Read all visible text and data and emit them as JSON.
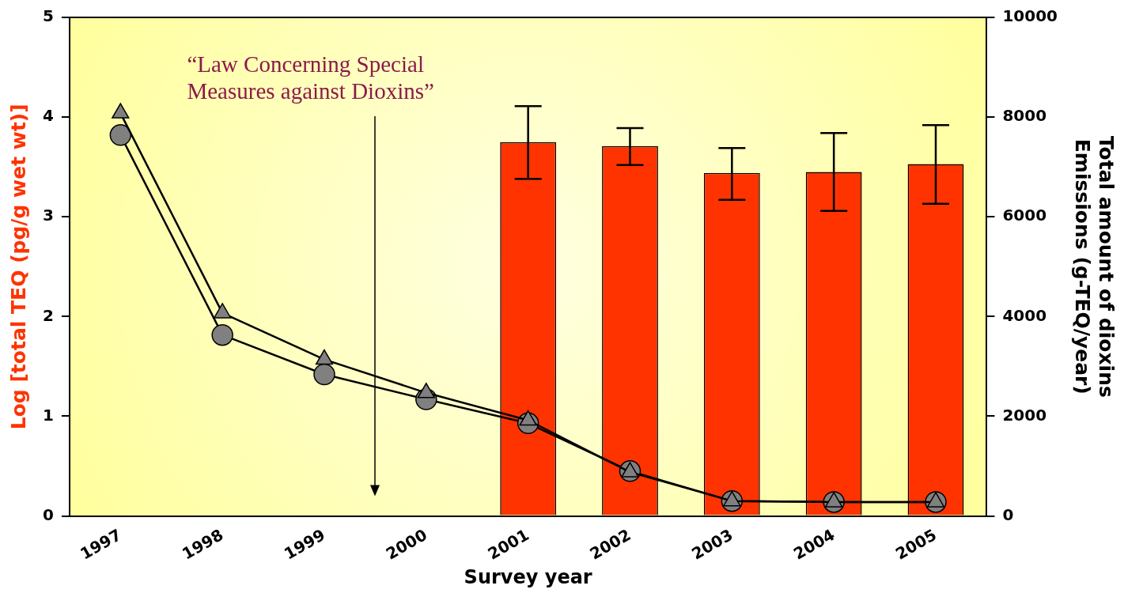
{
  "chart_data": {
    "type": "bar",
    "xlabel": "Survey year",
    "ylabel": "Log [total TEQ (pg/g wet wt)]",
    "y2label": "Total amount of dioxins\nEmissions (g-TEQ/year)",
    "categories": [
      "1997",
      "1998",
      "1999",
      "2000",
      "2001",
      "2002",
      "2003",
      "2004",
      "2005"
    ],
    "series": [
      {
        "color": "#ff3300",
        "values": [
          null,
          null,
          null,
          null,
          3.75,
          3.71,
          3.44,
          3.45,
          3.53
        ],
        "errors": [
          null,
          null,
          null,
          null,
          [
            3.38,
            4.11
          ],
          [
            3.52,
            3.89
          ],
          [
            3.17,
            3.69
          ],
          [
            3.06,
            3.84
          ],
          [
            3.13,
            3.92
          ]
        ]
      },
      {
        "type": "line",
        "axis": "y2",
        "marker": "circle",
        "color": "#808080",
        "values": [
          7640,
          3630,
          2840,
          2340,
          1860,
          900,
          300,
          280,
          280
        ]
      },
      {
        "type": "line",
        "axis": "y2",
        "marker": "triangle",
        "color": "#808080",
        "values": [
          8080,
          4070,
          3140,
          2470,
          1920,
          880,
          300,
          280,
          280
        ]
      }
    ],
    "ylim": [
      0,
      5
    ],
    "yticks": [
      0,
      1,
      2,
      3,
      4,
      5
    ],
    "y2lim": [
      0,
      10000
    ],
    "y2ticks": [
      0,
      2000,
      4000,
      6000,
      8000,
      10000
    ],
    "annotations": [
      "“Law Concerning Special\nMeasures against Dioxins”"
    ],
    "grid": false,
    "legend": false
  }
}
